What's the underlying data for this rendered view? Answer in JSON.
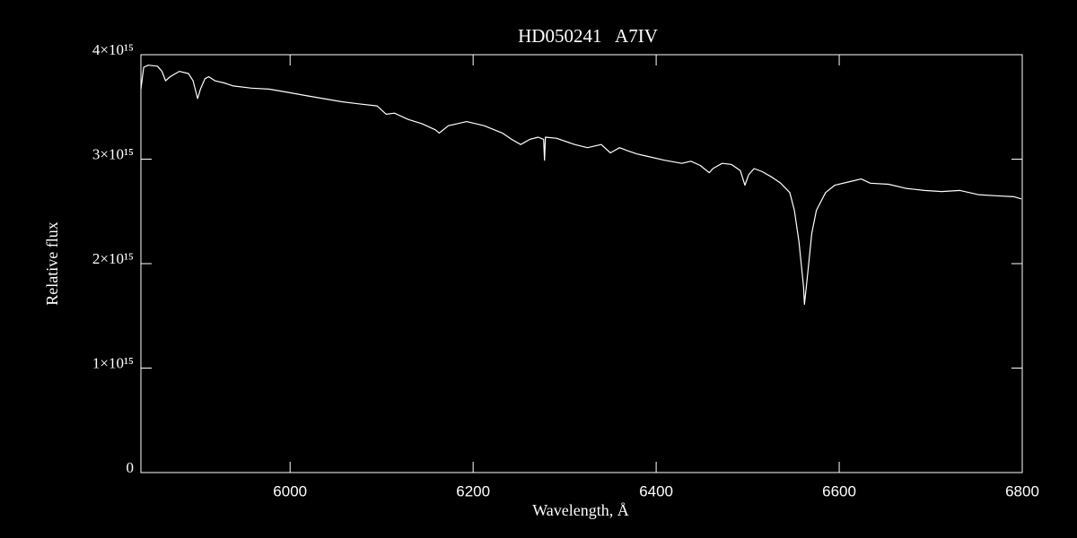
{
  "chart_data": {
    "type": "line",
    "title": "HD050241   A7IV",
    "xlabel": "Wavelength, Å",
    "ylabel": "Relative flux",
    "color": "#ffffff",
    "xlim": [
      5837,
      6800
    ],
    "xticks": [
      6000,
      6200,
      6400,
      6600,
      6800
    ],
    "ylim": [
      0,
      4000000000000000.0
    ],
    "yticks": [
      0,
      {
        "value": 1000000000000000.0,
        "label": "1×10¹⁵"
      },
      {
        "value": 2000000000000000.0,
        "label": "2×10¹⁵"
      },
      {
        "value": 3000000000000000.0,
        "label": "3×10¹⁵"
      },
      {
        "value": 4000000000000000.0,
        "label": "4×10¹⁵"
      }
    ],
    "x": [
      5837,
      5840,
      5845,
      5855,
      5860,
      5864,
      5869,
      5879,
      5889,
      5894,
      5899,
      5902,
      5907,
      5911,
      5918,
      5928,
      5938,
      5958,
      5977,
      5997,
      6016,
      6036,
      6056,
      6075,
      6095,
      6105,
      6114,
      6129,
      6144,
      6159,
      6163,
      6173,
      6193,
      6212,
      6232,
      6242,
      6252,
      6262,
      6271,
      6277,
      6278,
      6279,
      6291,
      6311,
      6325,
      6340,
      6350,
      6360,
      6369,
      6379,
      6389,
      6409,
      6428,
      6438,
      6448,
      6458,
      6462,
      6472,
      6482,
      6492,
      6497,
      6501,
      6507,
      6516,
      6526,
      6536,
      6546,
      6551,
      6556,
      6561,
      6562,
      6565,
      6570,
      6575,
      6585,
      6595,
      6614,
      6624,
      6634,
      6654,
      6673,
      6693,
      6712,
      6732,
      6752,
      6771,
      6791,
      6799
    ],
    "values": [
      3670000000000000.0,
      3880000000000000.0,
      3900000000000000.0,
      3890000000000000.0,
      3840000000000000.0,
      3750000000000000.0,
      3790000000000000.0,
      3840000000000000.0,
      3820000000000000.0,
      3750000000000000.0,
      3580000000000000.0,
      3670000000000000.0,
      3770000000000000.0,
      3790000000000000.0,
      3750000000000000.0,
      3730000000000000.0,
      3700000000000000.0,
      3680000000000000.0,
      3670000000000000.0,
      3640000000000000.0,
      3610000000000000.0,
      3580000000000000.0,
      3550000000000000.0,
      3530000000000000.0,
      3510000000000000.0,
      3430000000000000.0,
      3440000000000000.0,
      3380000000000000.0,
      3340000000000000.0,
      3280000000000000.0,
      3250000000000000.0,
      3320000000000000.0,
      3360000000000000.0,
      3320000000000000.0,
      3250000000000000.0,
      3190000000000000.0,
      3140000000000000.0,
      3190000000000000.0,
      3210000000000000.0,
      3190000000000000.0,
      2990000000000000.0,
      3210000000000000.0,
      3200000000000000.0,
      3140000000000000.0,
      3110000000000000.0,
      3140000000000000.0,
      3060000000000000.0,
      3110000000000000.0,
      3080000000000000.0,
      3050000000000000.0,
      3030000000000000.0,
      2990000000000000.0,
      2960000000000000.0,
      2980000000000000.0,
      2940000000000000.0,
      2870000000000000.0,
      2910000000000000.0,
      2960000000000000.0,
      2950000000000000.0,
      2890000000000000.0,
      2750000000000000.0,
      2850000000000000.0,
      2910000000000000.0,
      2880000000000000.0,
      2830000000000000.0,
      2770000000000000.0,
      2680000000000000.0,
      2510000000000000.0,
      2210000000000000.0,
      1780000000000000.0,
      1610000000000000.0,
      1860000000000000.0,
      2290000000000000.0,
      2510000000000000.0,
      2680000000000000.0,
      2750000000000000.0,
      2790000000000000.0,
      2810000000000000.0,
      2770000000000000.0,
      2760000000000000.0,
      2720000000000000.0,
      2700000000000000.0,
      2690000000000000.0,
      2700000000000000.0,
      2660000000000000.0,
      2650000000000000.0,
      2640000000000000.0,
      2620000000000000.0
    ]
  }
}
